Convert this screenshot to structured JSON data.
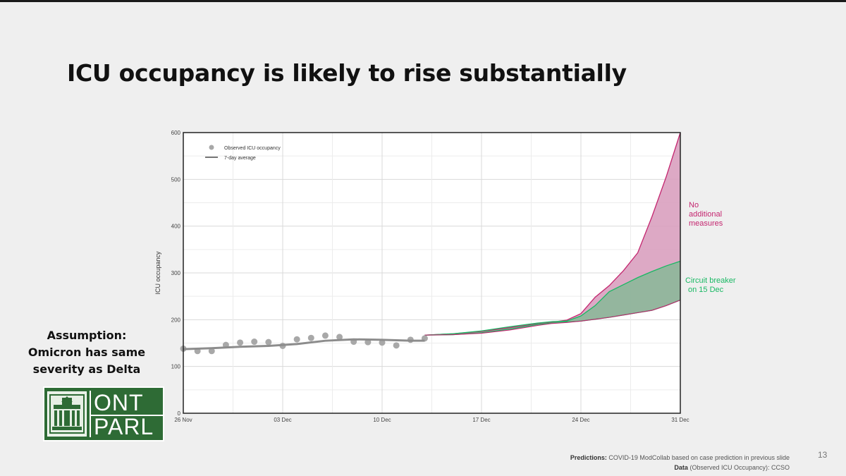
{
  "slide": {
    "title": "ICU occupancy is likely to rise substantially",
    "assumption_lines": [
      "Assumption:",
      "Omicron has same",
      "severity as Delta"
    ],
    "logo_top": "ONT",
    "logo_bottom": "PARL",
    "footer_label1": "Predictions:",
    "footer_text1": "COVID-19 ModCollab based on case prediction in previous slide",
    "footer_label2": "Data",
    "footer_text2": "(Observed ICU Occupancy): CCSO",
    "page_number": "13"
  },
  "colors": {
    "observed": "#a8a8a8",
    "average": "#8c8c8c",
    "no_measures_fill": "#d9a0bf",
    "no_measures_line": "#c4256f",
    "breaker_fill": "#8fb69c",
    "breaker_line": "#18b863",
    "lower_line": "#c4256f"
  },
  "chart_data": {
    "type": "line",
    "title": "",
    "xlabel": "",
    "ylabel": "ICU occupancy",
    "ylim": [
      0,
      600
    ],
    "xlim": [
      0,
      35
    ],
    "yticks": [
      0,
      100,
      200,
      300,
      400,
      500,
      600
    ],
    "xticks": [
      {
        "x": 0,
        "label": "26 Nov"
      },
      {
        "x": 7,
        "label": "03 Dec"
      },
      {
        "x": 14,
        "label": "10 Dec"
      },
      {
        "x": 21,
        "label": "17 Dec"
      },
      {
        "x": 28,
        "label": "24 Dec"
      },
      {
        "x": 35,
        "label": "31 Dec"
      }
    ],
    "legend": {
      "position": "top-left",
      "items": [
        {
          "label": "Observed ICU occupancy",
          "type": "point"
        },
        {
          "label": "7-day average",
          "type": "line"
        }
      ]
    },
    "annotations": [
      {
        "label_lines": [
          "No",
          "additional",
          "measures"
        ],
        "color_key": "no_measures_line"
      },
      {
        "label_lines": [
          "Circuit breaker",
          "on 15 Dec"
        ],
        "color_key": "breaker_line"
      }
    ],
    "observed": {
      "x": [
        0,
        1,
        2,
        3,
        4,
        5,
        6,
        7,
        8,
        9,
        10,
        11,
        12,
        13,
        14,
        15,
        16,
        17
      ],
      "y": [
        138,
        133,
        133,
        146,
        151,
        153,
        152,
        144,
        158,
        161,
        166,
        163,
        153,
        152,
        151,
        145,
        157,
        160
      ]
    },
    "seven_day_average": {
      "x": [
        0,
        2,
        4,
        6,
        8,
        10,
        12,
        14,
        16,
        17
      ],
      "y": [
        137,
        139,
        142,
        144,
        148,
        155,
        158,
        157,
        155,
        155
      ]
    },
    "projection_no_measures": {
      "x": [
        17,
        19,
        21,
        23,
        25,
        26,
        27,
        28,
        29,
        30,
        31,
        32,
        33,
        34,
        35
      ],
      "upper": [
        167,
        170,
        175,
        183,
        192,
        195,
        199,
        213,
        248,
        273,
        305,
        343,
        420,
        505,
        600
      ],
      "lower": [
        167,
        168,
        171,
        178,
        188,
        192,
        194,
        197,
        201,
        205,
        210,
        215,
        220,
        230,
        242
      ]
    },
    "projection_circuit_breaker": {
      "x": [
        17,
        19,
        21,
        23,
        25,
        26,
        27,
        28,
        29,
        30,
        31,
        32,
        33,
        34,
        35
      ],
      "upper": [
        167,
        170,
        176,
        185,
        193,
        196,
        197,
        208,
        230,
        260,
        275,
        290,
        303,
        315,
        325
      ],
      "lower": [
        167,
        168,
        172,
        180,
        190,
        193,
        195,
        197,
        201,
        205,
        210,
        215,
        220,
        230,
        242
      ]
    }
  }
}
